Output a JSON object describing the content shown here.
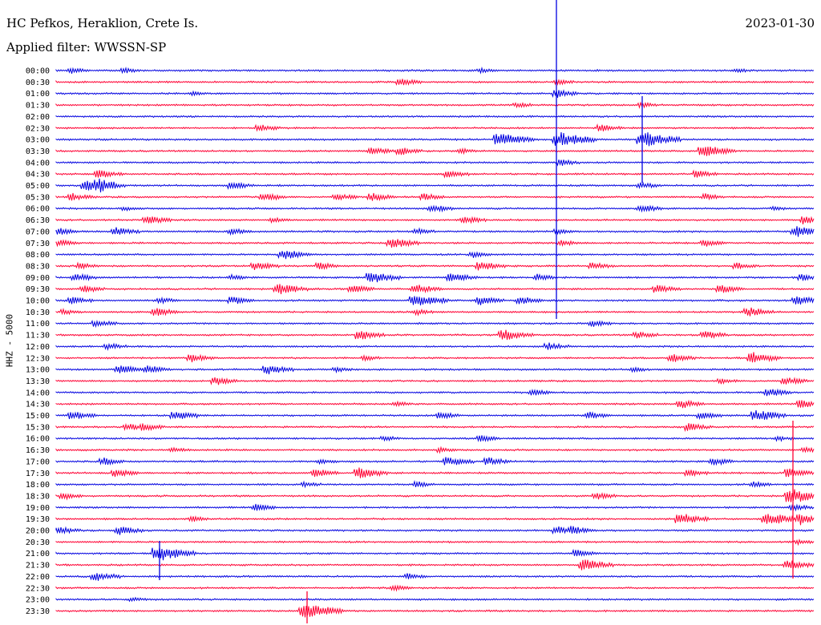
{
  "header": {
    "station": "HC Pefkos, Heraklion, Crete Is.",
    "filter": "Applied filter: WWSSN-SP",
    "date": "2023-01-30"
  },
  "chart_data": {
    "type": "line",
    "ylabel": "HHZ - 5000",
    "grid": false,
    "colors": {
      "blue": "#0000e0",
      "red": "#ff0033"
    },
    "rows": [
      {
        "label": "00:00",
        "color": "blue",
        "events": [
          [
            90,
            0.35
          ],
          [
            155,
            0.3
          ],
          [
            600,
            0.3
          ],
          [
            920,
            0.25
          ]
        ]
      },
      {
        "label": "00:30",
        "color": "red",
        "events": [
          [
            500,
            0.45
          ],
          [
            695,
            0.3
          ]
        ]
      },
      {
        "label": "01:00",
        "color": "blue",
        "events": [
          [
            240,
            0.2
          ],
          [
            695,
            0.5
          ]
        ]
      },
      {
        "label": "01:30",
        "color": "red",
        "events": [
          [
            645,
            0.3
          ],
          [
            800,
            0.3
          ]
        ]
      },
      {
        "label": "02:00",
        "color": "blue",
        "events": []
      },
      {
        "label": "02:30",
        "color": "red",
        "events": [
          [
            325,
            0.45
          ],
          [
            750,
            0.45
          ]
        ]
      },
      {
        "label": "03:00",
        "color": "blue",
        "events": [
          [
            625,
            0.9
          ],
          [
            700,
            1.0
          ],
          [
            805,
            1.0
          ]
        ]
      },
      {
        "label": "03:30",
        "color": "red",
        "events": [
          [
            465,
            0.5
          ],
          [
            500,
            0.5
          ],
          [
            575,
            0.3
          ],
          [
            880,
            0.8
          ]
        ]
      },
      {
        "label": "04:00",
        "color": "blue",
        "events": [
          [
            700,
            0.4
          ]
        ]
      },
      {
        "label": "04:30",
        "color": "red",
        "events": [
          [
            125,
            0.55
          ],
          [
            560,
            0.45
          ],
          [
            870,
            0.45
          ]
        ]
      },
      {
        "label": "05:00",
        "color": "blue",
        "events": [
          [
            110,
            0.7
          ],
          [
            125,
            0.6
          ],
          [
            290,
            0.5
          ],
          [
            800,
            0.4
          ]
        ]
      },
      {
        "label": "05:30",
        "color": "red",
        "events": [
          [
            90,
            0.45
          ],
          [
            330,
            0.5
          ],
          [
            420,
            0.45
          ],
          [
            465,
            0.5
          ],
          [
            530,
            0.45
          ],
          [
            880,
            0.4
          ]
        ]
      },
      {
        "label": "06:00",
        "color": "blue",
        "events": [
          [
            155,
            0.25
          ],
          [
            540,
            0.5
          ],
          [
            800,
            0.5
          ],
          [
            965,
            0.2
          ]
        ]
      },
      {
        "label": "06:30",
        "color": "red",
        "events": [
          [
            185,
            0.55
          ],
          [
            340,
            0.3
          ],
          [
            580,
            0.5
          ],
          [
            1005,
            0.6
          ]
        ]
      },
      {
        "label": "07:00",
        "color": "blue",
        "events": [
          [
            75,
            0.4
          ],
          [
            145,
            0.55
          ],
          [
            290,
            0.4
          ],
          [
            520,
            0.4
          ],
          [
            695,
            0.3
          ],
          [
            995,
            0.7
          ]
        ]
      },
      {
        "label": "07:30",
        "color": "red",
        "events": [
          [
            75,
            0.4
          ],
          [
            490,
            0.7
          ],
          [
            700,
            0.35
          ],
          [
            880,
            0.45
          ]
        ]
      },
      {
        "label": "08:00",
        "color": "blue",
        "events": [
          [
            355,
            0.65
          ],
          [
            590,
            0.4
          ]
        ]
      },
      {
        "label": "08:30",
        "color": "red",
        "events": [
          [
            100,
            0.4
          ],
          [
            320,
            0.55
          ],
          [
            400,
            0.45
          ],
          [
            600,
            0.6
          ],
          [
            740,
            0.45
          ],
          [
            920,
            0.4
          ]
        ]
      },
      {
        "label": "09:00",
        "color": "blue",
        "events": [
          [
            95,
            0.5
          ],
          [
            290,
            0.3
          ],
          [
            465,
            0.75
          ],
          [
            565,
            0.6
          ],
          [
            670,
            0.4
          ],
          [
            1000,
            0.4
          ]
        ]
      },
      {
        "label": "09:30",
        "color": "red",
        "events": [
          [
            105,
            0.45
          ],
          [
            350,
            0.7
          ],
          [
            440,
            0.5
          ],
          [
            520,
            0.6
          ],
          [
            820,
            0.55
          ],
          [
            900,
            0.55
          ]
        ]
      },
      {
        "label": "10:00",
        "color": "blue",
        "events": [
          [
            90,
            0.45
          ],
          [
            200,
            0.35
          ],
          [
            290,
            0.5
          ],
          [
            520,
            0.85
          ],
          [
            600,
            0.55
          ],
          [
            650,
            0.5
          ],
          [
            995,
            0.6
          ]
        ]
      },
      {
        "label": "10:30",
        "color": "red",
        "events": [
          [
            80,
            0.35
          ],
          [
            195,
            0.55
          ],
          [
            520,
            0.35
          ],
          [
            935,
            0.6
          ]
        ]
      },
      {
        "label": "11:00",
        "color": "blue",
        "events": [
          [
            120,
            0.45
          ],
          [
            740,
            0.4
          ]
        ]
      },
      {
        "label": "11:30",
        "color": "red",
        "events": [
          [
            450,
            0.6
          ],
          [
            630,
            0.7
          ],
          [
            795,
            0.45
          ],
          [
            880,
            0.55
          ]
        ]
      },
      {
        "label": "12:00",
        "color": "blue",
        "events": [
          [
            135,
            0.4
          ],
          [
            685,
            0.45
          ]
        ]
      },
      {
        "label": "12:30",
        "color": "red",
        "events": [
          [
            240,
            0.5
          ],
          [
            455,
            0.3
          ],
          [
            840,
            0.55
          ],
          [
            940,
            0.7
          ]
        ]
      },
      {
        "label": "13:00",
        "color": "blue",
        "events": [
          [
            150,
            0.55
          ],
          [
            185,
            0.5
          ],
          [
            335,
            0.6
          ],
          [
            420,
            0.3
          ],
          [
            790,
            0.3
          ]
        ]
      },
      {
        "label": "13:30",
        "color": "red",
        "events": [
          [
            270,
            0.5
          ],
          [
            900,
            0.3
          ],
          [
            980,
            0.5
          ]
        ]
      },
      {
        "label": "14:00",
        "color": "blue",
        "events": [
          [
            665,
            0.4
          ],
          [
            960,
            0.5
          ]
        ]
      },
      {
        "label": "14:30",
        "color": "red",
        "events": [
          [
            495,
            0.3
          ],
          [
            850,
            0.55
          ],
          [
            1000,
            0.55
          ]
        ]
      },
      {
        "label": "15:00",
        "color": "blue",
        "events": [
          [
            92,
            0.55
          ],
          [
            220,
            0.6
          ],
          [
            550,
            0.45
          ],
          [
            735,
            0.45
          ],
          [
            875,
            0.45
          ],
          [
            945,
            0.75
          ]
        ]
      },
      {
        "label": "15:30",
        "color": "red",
        "events": [
          [
            160,
            0.45
          ],
          [
            180,
            0.45
          ],
          [
            860,
            0.5
          ]
        ]
      },
      {
        "label": "16:00",
        "color": "blue",
        "events": [
          [
            480,
            0.3
          ],
          [
            600,
            0.4
          ],
          [
            970,
            0.3
          ]
        ]
      },
      {
        "label": "16:30",
        "color": "red",
        "events": [
          [
            215,
            0.3
          ],
          [
            550,
            0.3
          ],
          [
            1005,
            0.35
          ]
        ]
      },
      {
        "label": "17:00",
        "color": "blue",
        "events": [
          [
            130,
            0.45
          ],
          [
            400,
            0.3
          ],
          [
            560,
            0.6
          ],
          [
            610,
            0.5
          ],
          [
            890,
            0.5
          ]
        ]
      },
      {
        "label": "17:30",
        "color": "red",
        "events": [
          [
            145,
            0.5
          ],
          [
            395,
            0.55
          ],
          [
            450,
            0.7
          ],
          [
            860,
            0.4
          ],
          [
            985,
            0.55
          ]
        ]
      },
      {
        "label": "18:00",
        "color": "blue",
        "events": [
          [
            380,
            0.3
          ],
          [
            520,
            0.4
          ],
          [
            940,
            0.35
          ]
        ]
      },
      {
        "label": "18:30",
        "color": "red",
        "events": [
          [
            80,
            0.4
          ],
          [
            745,
            0.45
          ],
          [
            990,
            1.0
          ]
        ]
      },
      {
        "label": "19:00",
        "color": "blue",
        "events": [
          [
            320,
            0.45
          ],
          [
            990,
            0.4
          ]
        ]
      },
      {
        "label": "19:30",
        "color": "red",
        "events": [
          [
            240,
            0.3
          ],
          [
            850,
            0.75
          ],
          [
            960,
            0.85
          ],
          [
            1000,
            0.6
          ]
        ]
      },
      {
        "label": "20:00",
        "color": "blue",
        "events": [
          [
            75,
            0.45
          ],
          [
            150,
            0.55
          ],
          [
            695,
            0.5
          ],
          [
            715,
            0.45
          ]
        ]
      },
      {
        "label": "20:30",
        "color": "red",
        "events": [
          [
            995,
            0.3
          ]
        ]
      },
      {
        "label": "21:00",
        "color": "blue",
        "events": [
          [
            200,
            1.0
          ],
          [
            720,
            0.45
          ]
        ]
      },
      {
        "label": "21:30",
        "color": "red",
        "events": [
          [
            730,
            0.75
          ],
          [
            985,
            0.6
          ]
        ]
      },
      {
        "label": "22:00",
        "color": "blue",
        "events": [
          [
            120,
            0.6
          ],
          [
            510,
            0.35
          ]
        ]
      },
      {
        "label": "22:30",
        "color": "red",
        "events": [
          [
            492,
            0.35
          ]
        ]
      },
      {
        "label": "23:00",
        "color": "blue",
        "events": [
          [
            165,
            0.25
          ]
        ]
      },
      {
        "label": "23:30",
        "color": "red",
        "events": [
          [
            383,
            1.0
          ]
        ]
      }
    ]
  }
}
